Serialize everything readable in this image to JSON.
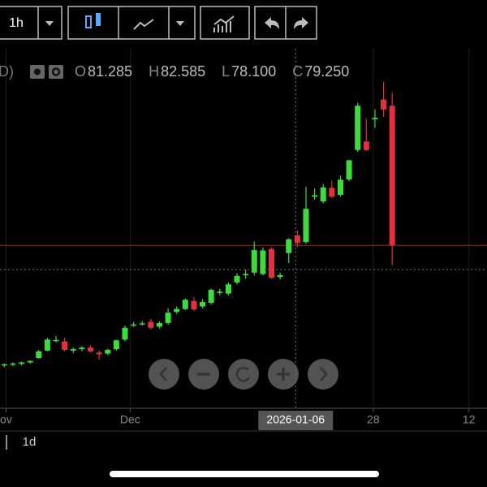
{
  "toolbar": {
    "interval": "1h"
  },
  "chart_data": {
    "type": "candlestick",
    "legend_prefix": "D)",
    "ohlc_letters": [
      "O",
      "H",
      "L",
      "C"
    ],
    "hover_labels": [
      "81.285",
      "82.585",
      "78.100",
      "79.250"
    ],
    "hover_index": 34,
    "up_color": "#3ddc3d",
    "down_color": "#e2303c",
    "last_price_color": "#b01818",
    "open": [
      46.0,
      46.3,
      46.4,
      46.8,
      48.0,
      50.0,
      52.8,
      52.5,
      50.0,
      50.4,
      50.8,
      49.5,
      49.2,
      50.4,
      53.0,
      57.0,
      57.3,
      57.8,
      56.5,
      57.5,
      60.5,
      61.3,
      63.5,
      62.0,
      63.0,
      65.8,
      65.5,
      68.5,
      70.5,
      71.2,
      70.8,
      77.6,
      70.0,
      76.5,
      81.285,
      79.5,
      91.8,
      90.5,
      94.2,
      92.3,
      96.5,
      104.5,
      106.8,
      112.8,
      118.2,
      116.5
    ],
    "high": [
      46.5,
      46.8,
      47.0,
      47.3,
      50.2,
      53.5,
      54.0,
      53.5,
      50.8,
      51.2,
      51.5,
      50.0,
      50.5,
      53.0,
      56.8,
      57.8,
      58.0,
      58.6,
      58.0,
      61.5,
      62.0,
      64.2,
      64.5,
      64.0,
      66.8,
      66.8,
      68.5,
      71.0,
      72.0,
      79.6,
      78.0,
      78.0,
      71.2,
      80.5,
      82.585,
      94.5,
      94.0,
      95.3,
      96.2,
      97.5,
      101.8,
      117.3,
      113.0,
      115.5,
      123.0,
      120.0
    ],
    "low": [
      45.5,
      45.8,
      46.0,
      46.4,
      47.8,
      49.8,
      52.2,
      49.8,
      49.3,
      49.8,
      49.5,
      47.5,
      48.8,
      50.0,
      52.5,
      56.5,
      56.8,
      55.8,
      56.0,
      57.0,
      60.0,
      61.0,
      60.8,
      61.5,
      62.5,
      65.0,
      65.0,
      68.0,
      69.5,
      70.5,
      70.5,
      69.5,
      69.3,
      73.8,
      78.1,
      79.0,
      91.0,
      90.0,
      91.5,
      91.8,
      96.0,
      104.0,
      104.2,
      110.5,
      113.5,
      73.2
    ],
    "close": [
      46.3,
      46.5,
      46.8,
      47.2,
      49.8,
      53.0,
      52.9,
      50.2,
      50.4,
      50.8,
      49.8,
      49.0,
      50.2,
      52.8,
      56.2,
      57.1,
      57.4,
      56.2,
      57.5,
      60.3,
      61.3,
      63.8,
      61.2,
      63.2,
      66.5,
      66.0,
      68.0,
      70.3,
      70.8,
      77.3,
      77.2,
      69.8,
      70.5,
      80.2,
      79.25,
      88.5,
      92.2,
      94.3,
      91.8,
      96.4,
      101.7,
      116.5,
      104.5,
      113.2,
      115.5,
      78.6
    ],
    "xlim": [
      -0.5,
      56
    ],
    "ylim": [
      35,
      132
    ],
    "xticks": [
      {
        "value": 0.2,
        "label": "ov"
      },
      {
        "value": 14.6,
        "label": "Dec"
      },
      {
        "value": 42.8,
        "label": "28"
      },
      {
        "value": 53.9,
        "label": "12"
      }
    ],
    "crosshair_x": {
      "value": 33.8,
      "label": "2026-01-06"
    },
    "crosshair_price": 72.0
  },
  "range_buttons": [
    "1d"
  ]
}
